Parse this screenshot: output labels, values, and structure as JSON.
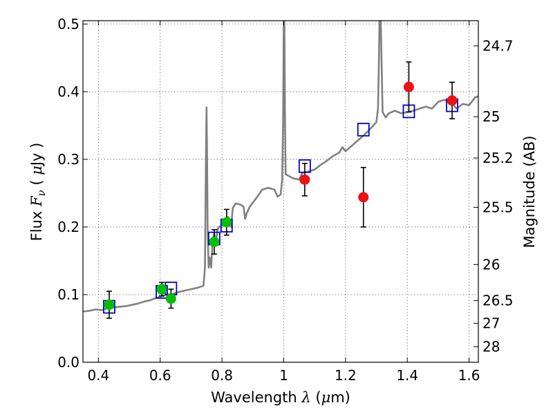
{
  "chart_data": {
    "type": "scatter",
    "xlabel": {
      "prefix": "Wavelength  ",
      "symbol": "λ",
      "suffix": " (",
      "unit_mu": "μ",
      "unit_rest": "m)"
    },
    "ylabel": {
      "prefix": "Flux  ",
      "symbol": "F",
      "subscript": "ν",
      "open": "  ( ",
      "unit_mu": "μ",
      "unit_rest": "Jy )"
    },
    "y2label": "Magnitude (AB)",
    "xlim": [
      0.35,
      1.63
    ],
    "ylim": [
      0.0,
      0.505
    ],
    "x_ticks": [
      {
        "value": 0.4,
        "label": "0.4"
      },
      {
        "value": 0.6,
        "label": "0.6"
      },
      {
        "value": 0.8,
        "label": "0.8"
      },
      {
        "value": 1.0,
        "label": "1"
      },
      {
        "value": 1.2,
        "label": "1.2"
      },
      {
        "value": 1.4,
        "label": "1.4"
      },
      {
        "value": 1.6,
        "label": "1.6"
      }
    ],
    "y_ticks": [
      {
        "value": 0.0,
        "label": "0.0"
      },
      {
        "value": 0.1,
        "label": "0.1"
      },
      {
        "value": 0.2,
        "label": "0.2"
      },
      {
        "value": 0.3,
        "label": "0.3"
      },
      {
        "value": 0.4,
        "label": "0.4"
      },
      {
        "value": 0.5,
        "label": "0.5"
      }
    ],
    "y2_ticks": [
      {
        "flux": 0.4677,
        "label": "24.7"
      },
      {
        "flux": 0.3631,
        "label": "25"
      },
      {
        "flux": 0.302,
        "label": "25.2"
      },
      {
        "flux": 0.2291,
        "label": "25.5"
      },
      {
        "flux": 0.1445,
        "label": "26"
      },
      {
        "flux": 0.0912,
        "label": "26.5"
      },
      {
        "flux": 0.0575,
        "label": "27"
      },
      {
        "flux": 0.0229,
        "label": "28"
      }
    ],
    "grid": true,
    "series": [
      {
        "kind": "line",
        "color": "#808080",
        "points": [
          [
            0.35,
            0.075
          ],
          [
            0.37,
            0.076
          ],
          [
            0.39,
            0.078
          ],
          [
            0.41,
            0.077
          ],
          [
            0.43,
            0.08
          ],
          [
            0.45,
            0.081
          ],
          [
            0.47,
            0.082
          ],
          [
            0.49,
            0.083
          ],
          [
            0.51,
            0.085
          ],
          [
            0.53,
            0.087
          ],
          [
            0.55,
            0.09
          ],
          [
            0.57,
            0.092
          ],
          [
            0.58,
            0.094
          ],
          [
            0.6,
            0.097
          ],
          [
            0.62,
            0.1
          ],
          [
            0.64,
            0.101
          ],
          [
            0.66,
            0.104
          ],
          [
            0.68,
            0.106
          ],
          [
            0.7,
            0.108
          ],
          [
            0.72,
            0.11
          ],
          [
            0.74,
            0.113
          ],
          [
            0.745,
            0.14
          ],
          [
            0.748,
            0.3
          ],
          [
            0.75,
            0.377
          ],
          [
            0.752,
            0.3
          ],
          [
            0.754,
            0.185
          ],
          [
            0.757,
            0.14
          ],
          [
            0.76,
            0.155
          ],
          [
            0.765,
            0.14
          ],
          [
            0.77,
            0.182
          ],
          [
            0.775,
            0.19
          ],
          [
            0.78,
            0.175
          ],
          [
            0.785,
            0.195
          ],
          [
            0.79,
            0.2
          ],
          [
            0.8,
            0.202
          ],
          [
            0.81,
            0.208
          ],
          [
            0.82,
            0.215
          ],
          [
            0.83,
            0.2
          ],
          [
            0.835,
            0.228
          ],
          [
            0.845,
            0.235
          ],
          [
            0.86,
            0.233
          ],
          [
            0.87,
            0.23
          ],
          [
            0.875,
            0.212
          ],
          [
            0.88,
            0.22
          ],
          [
            0.89,
            0.23
          ],
          [
            0.91,
            0.242
          ],
          [
            0.93,
            0.255
          ],
          [
            0.95,
            0.258
          ],
          [
            0.97,
            0.255
          ],
          [
            0.98,
            0.245
          ],
          [
            0.99,
            0.248
          ],
          [
            0.995,
            0.27
          ],
          [
            0.998,
            0.36
          ],
          [
            1.0,
            0.505
          ],
          [
            1.002,
            0.505
          ],
          [
            1.004,
            0.36
          ],
          [
            1.006,
            0.278
          ],
          [
            1.03,
            0.272
          ],
          [
            1.05,
            0.27
          ],
          [
            1.06,
            0.28
          ],
          [
            1.08,
            0.282
          ],
          [
            1.1,
            0.285
          ],
          [
            1.12,
            0.292
          ],
          [
            1.14,
            0.298
          ],
          [
            1.16,
            0.305
          ],
          [
            1.18,
            0.31
          ],
          [
            1.19,
            0.318
          ],
          [
            1.2,
            0.312
          ],
          [
            1.22,
            0.32
          ],
          [
            1.24,
            0.328
          ],
          [
            1.26,
            0.336
          ],
          [
            1.28,
            0.345
          ],
          [
            1.29,
            0.35
          ],
          [
            1.3,
            0.355
          ],
          [
            1.305,
            0.375
          ],
          [
            1.308,
            0.44
          ],
          [
            1.31,
            0.505
          ],
          [
            1.314,
            0.505
          ],
          [
            1.317,
            0.44
          ],
          [
            1.32,
            0.37
          ],
          [
            1.33,
            0.362
          ],
          [
            1.34,
            0.368
          ],
          [
            1.35,
            0.37
          ],
          [
            1.36,
            0.372
          ],
          [
            1.38,
            0.368
          ],
          [
            1.4,
            0.37
          ],
          [
            1.42,
            0.372
          ],
          [
            1.44,
            0.375
          ],
          [
            1.46,
            0.378
          ],
          [
            1.48,
            0.375
          ],
          [
            1.5,
            0.385
          ],
          [
            1.52,
            0.388
          ],
          [
            1.54,
            0.385
          ],
          [
            1.56,
            0.375
          ],
          [
            1.58,
            0.382
          ],
          [
            1.6,
            0.38
          ],
          [
            1.62,
            0.392
          ],
          [
            1.63,
            0.393
          ]
        ]
      },
      {
        "kind": "markers-square",
        "color": "#0000cc",
        "points": [
          [
            0.435,
            0.082
          ],
          [
            0.605,
            0.104
          ],
          [
            0.635,
            0.109
          ],
          [
            0.775,
            0.183
          ],
          [
            0.815,
            0.202
          ],
          [
            1.068,
            0.29
          ],
          [
            1.258,
            0.344
          ],
          [
            1.405,
            0.371
          ],
          [
            1.545,
            0.38
          ]
        ]
      },
      {
        "kind": "markers-circle",
        "color": "#00c000",
        "points": [
          {
            "x": 0.435,
            "y": 0.085,
            "err": 0.02
          },
          {
            "x": 0.605,
            "y": 0.108,
            "err": 0.01
          },
          {
            "x": 0.635,
            "y": 0.094,
            "err": 0.014
          },
          {
            "x": 0.775,
            "y": 0.178,
            "err": 0.018
          },
          {
            "x": 0.815,
            "y": 0.207,
            "err": 0.019
          }
        ]
      },
      {
        "kind": "markers-circle",
        "color": "#ee1111",
        "points": [
          {
            "x": 1.068,
            "y": 0.27,
            "err": 0.024
          },
          {
            "x": 1.258,
            "y": 0.244,
            "err": 0.044
          },
          {
            "x": 1.405,
            "y": 0.407,
            "err": 0.037
          },
          {
            "x": 1.545,
            "y": 0.387,
            "err": 0.027
          }
        ]
      }
    ]
  }
}
